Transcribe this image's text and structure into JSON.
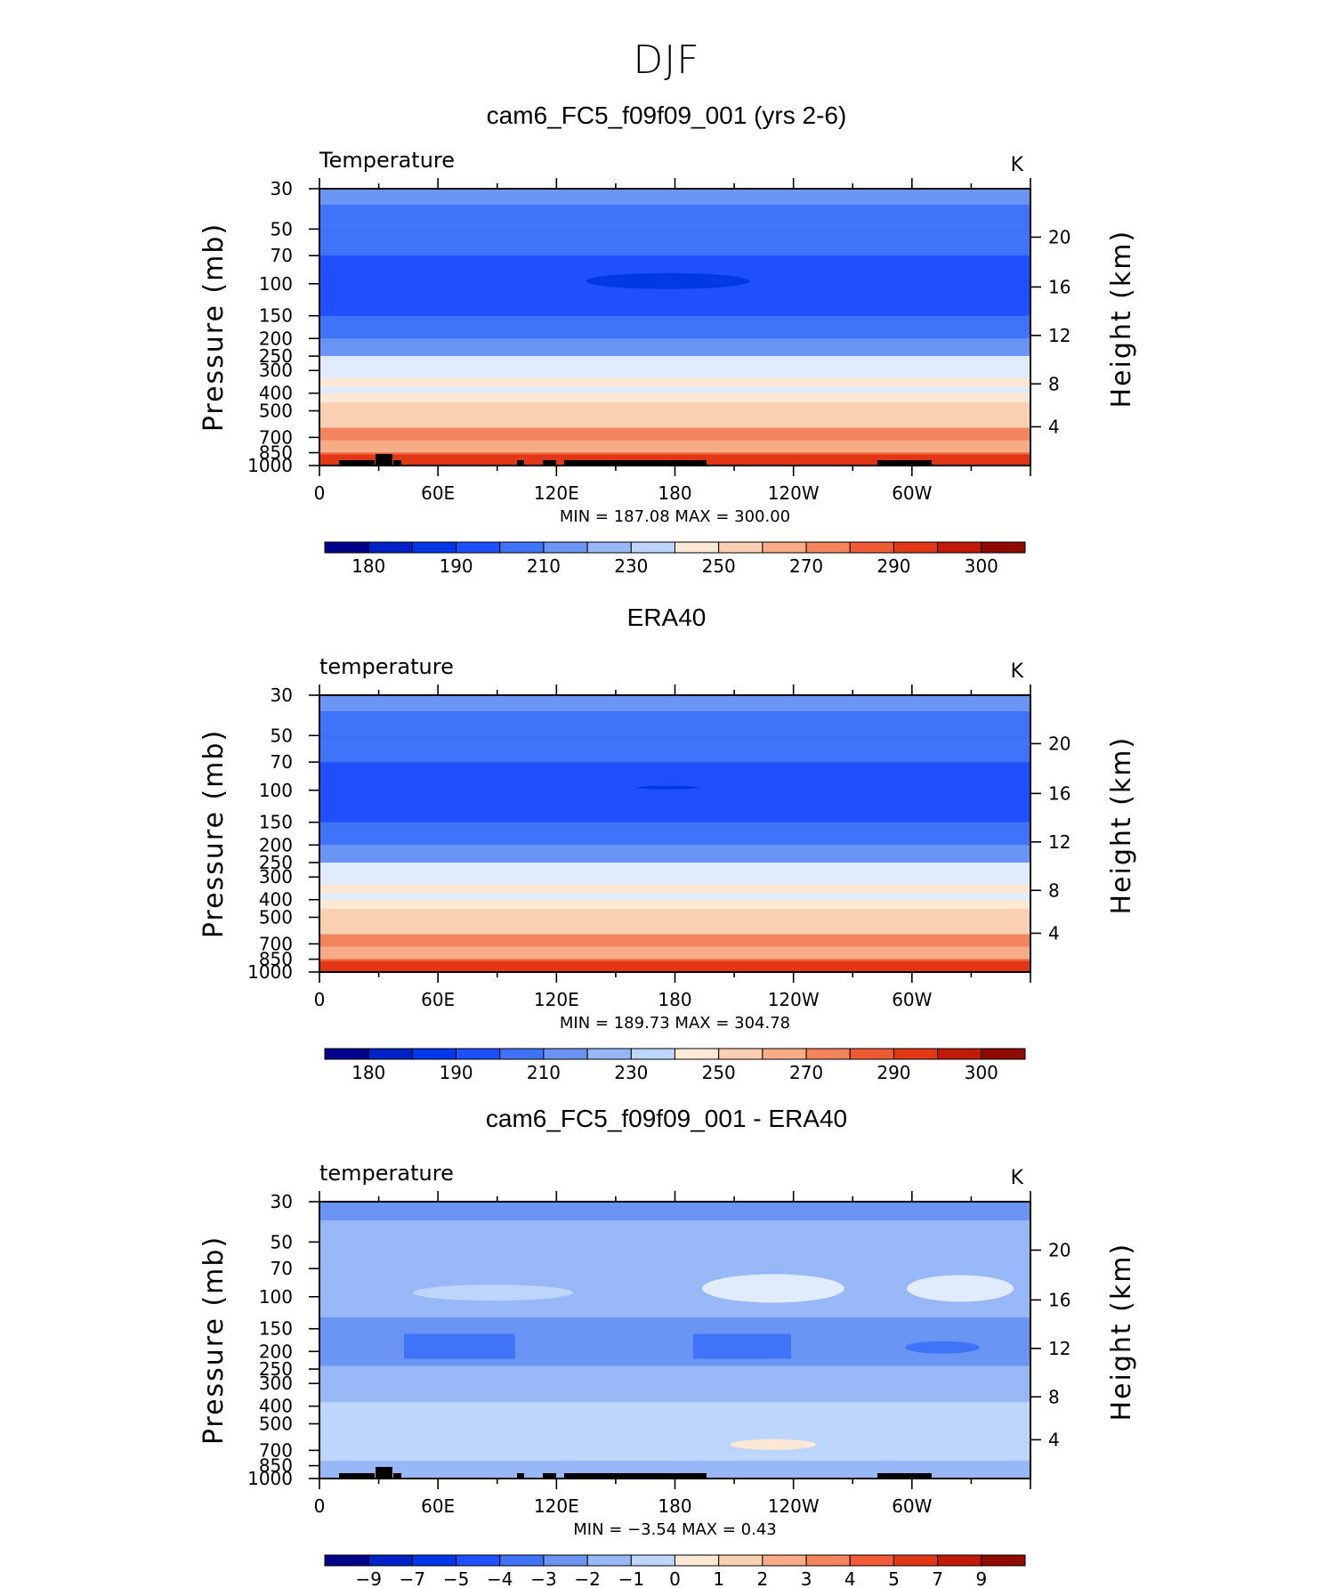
{
  "figure": {
    "title": "DJF",
    "colors": {
      "temp_palette": [
        "#00008b",
        "#0022c8",
        "#0038e8",
        "#1e50ff",
        "#3f73f8",
        "#6b95f5",
        "#97b7f7",
        "#bdd4fb",
        "#e0ecfd",
        "#fde8d6",
        "#fbcfb2",
        "#f7ac87",
        "#f3845c",
        "#f05a34",
        "#e23716",
        "#c21a08",
        "#8f0b02"
      ],
      "diff_palette": [
        "#00008b",
        "#0022c8",
        "#0038e8",
        "#1e50ff",
        "#3f73f8",
        "#6b95f5",
        "#97b7f7",
        "#bdd4fb",
        "#e0ecfd",
        "#fde8d6",
        "#fbcfb2",
        "#f7ac87",
        "#f3845c",
        "#f05a34",
        "#e23716",
        "#c21a08",
        "#8f0b02"
      ],
      "land_mask": "#000000"
    }
  },
  "chart_data": [
    {
      "type": "heatmap",
      "title": "cam6_FC5_f09f09_001 (yrs 2-6)",
      "left_label": "Temperature",
      "right_label": "K",
      "ylabel": "Pressure (mb)",
      "ylabel_right": "Height (km)",
      "y_ticks": [
        "30",
        "50",
        "70",
        "100",
        "150",
        "200",
        "250",
        "300",
        "400",
        "500",
        "700",
        "850",
        "1000"
      ],
      "y_right_ticks": [
        "20",
        "16",
        "12",
        "8",
        "4"
      ],
      "x_ticks": [
        "0",
        "60E",
        "120E",
        "180",
        "120W",
        "60W"
      ],
      "stats": "MIN  =  187.08   MAX  =  300.00",
      "colorbar_labels": [
        "180",
        "190",
        "210",
        "230",
        "250",
        "270",
        "290",
        "300"
      ],
      "levels_p": [
        30,
        50,
        70,
        100,
        150,
        200,
        250,
        300,
        400,
        500,
        700,
        850,
        1000
      ],
      "bin_profile": [
        4,
        4,
        3,
        3,
        4,
        5,
        6,
        8,
        9,
        10,
        11,
        13,
        14
      ]
    },
    {
      "type": "heatmap",
      "title": "ERA40",
      "left_label": "temperature",
      "right_label": "K",
      "ylabel": "Pressure (mb)",
      "ylabel_right": "Height (km)",
      "y_ticks": [
        "30",
        "50",
        "70",
        "100",
        "150",
        "200",
        "250",
        "300",
        "400",
        "500",
        "700",
        "850",
        "1000"
      ],
      "y_right_ticks": [
        "20",
        "16",
        "12",
        "8",
        "4"
      ],
      "x_ticks": [
        "0",
        "60E",
        "120E",
        "180",
        "120W",
        "60W"
      ],
      "stats": "MIN  =  189.73   MAX  =  304.78",
      "colorbar_labels": [
        "180",
        "190",
        "210",
        "230",
        "250",
        "270",
        "290",
        "300"
      ],
      "levels_p": [
        30,
        50,
        70,
        100,
        150,
        200,
        250,
        300,
        400,
        500,
        700,
        850,
        1000
      ],
      "bin_profile": [
        4,
        4,
        3,
        3,
        4,
        5,
        6,
        8,
        9,
        10,
        11,
        13,
        15
      ]
    },
    {
      "type": "heatmap",
      "title": "cam6_FC5_f09f09_001 - ERA40",
      "left_label": "temperature",
      "right_label": "K",
      "ylabel": "Pressure (mb)",
      "ylabel_right": "Height (km)",
      "y_ticks": [
        "30",
        "50",
        "70",
        "100",
        "150",
        "200",
        "250",
        "300",
        "400",
        "500",
        "700",
        "850",
        "1000"
      ],
      "y_right_ticks": [
        "20",
        "16",
        "12",
        "8",
        "4"
      ],
      "x_ticks": [
        "0",
        "60E",
        "120E",
        "180",
        "120W",
        "60W"
      ],
      "stats": "MIN  =   −3.54   MAX  =     0.43",
      "colorbar_labels": [
        "−9",
        "−7",
        "−5",
        "−4",
        "−3",
        "−2",
        "−1",
        "0",
        "1",
        "2",
        "3",
        "4",
        "5",
        "7",
        "9"
      ],
      "levels_p": [
        30,
        50,
        70,
        100,
        150,
        200,
        250,
        300,
        400,
        500,
        700,
        850,
        1000
      ],
      "bin_profile": [
        5,
        6,
        6,
        6,
        5,
        5,
        6,
        6,
        7,
        7,
        6,
        6,
        6
      ]
    }
  ]
}
